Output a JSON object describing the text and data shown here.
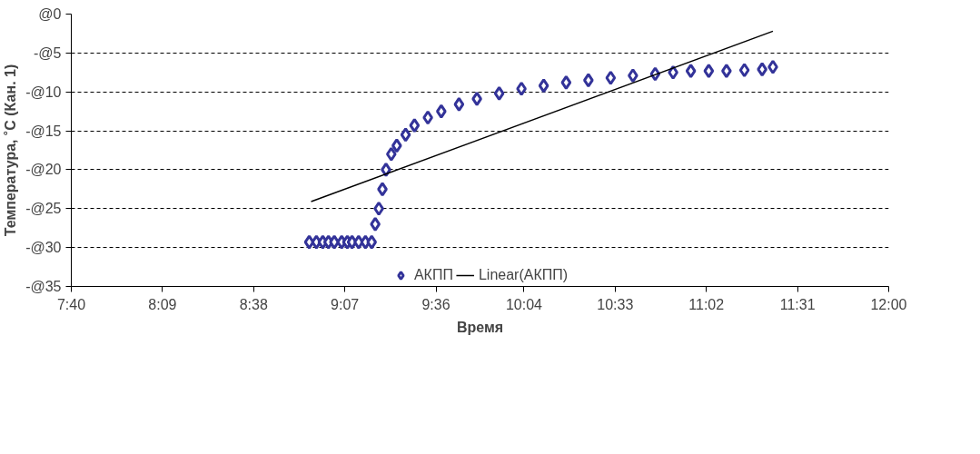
{
  "chart_data": {
    "type": "scatter",
    "xlabel": "Время",
    "ylabel": "Температура, ˚С (Кан. 1)",
    "xlim": [
      7.6667,
      12.0
    ],
    "xticks": [
      {
        "value": 7.6667,
        "label": "7:40"
      },
      {
        "value": 8.15,
        "label": "8:09"
      },
      {
        "value": 8.6333,
        "label": "8:38"
      },
      {
        "value": 9.1167,
        "label": "9:07"
      },
      {
        "value": 9.6,
        "label": "9:36"
      },
      {
        "value": 10.0667,
        "label": "10:04"
      },
      {
        "value": 10.55,
        "label": "10:33"
      },
      {
        "value": 11.0333,
        "label": "11:02"
      },
      {
        "value": 11.5167,
        "label": "11:31"
      },
      {
        "value": 12.0,
        "label": "12:00"
      }
    ],
    "ylim": [
      -35,
      0
    ],
    "yticks": [
      {
        "value": 0,
        "label": "@0"
      },
      {
        "value": -5,
        "label": "-@5"
      },
      {
        "value": -10,
        "label": "-@10"
      },
      {
        "value": -15,
        "label": "-@15"
      },
      {
        "value": -20,
        "label": "-@20"
      },
      {
        "value": -25,
        "label": "-@25"
      },
      {
        "value": -30,
        "label": "-@30"
      },
      {
        "value": -35,
        "label": "-@35"
      }
    ],
    "grid": "y",
    "legend": "bottom",
    "marker": "diamond",
    "series": [
      {
        "name": "АКПП",
        "color": "#333399",
        "x": [
          8.928,
          8.966,
          9.0,
          9.03,
          9.061,
          9.1,
          9.13,
          9.155,
          9.19,
          9.226,
          9.259,
          9.278,
          9.297,
          9.316,
          9.335,
          9.363,
          9.392,
          9.439,
          9.486,
          9.557,
          9.628,
          9.722,
          9.817,
          9.935,
          10.053,
          10.171,
          10.29,
          10.408,
          10.526,
          10.644,
          10.762,
          10.857,
          10.951,
          11.046,
          11.14,
          11.235,
          11.329,
          11.386
        ],
        "values": [
          -29.3,
          -29.3,
          -29.3,
          -29.3,
          -29.3,
          -29.3,
          -29.3,
          -29.3,
          -29.3,
          -29.3,
          -29.3,
          -27,
          -25,
          -22.5,
          -20,
          -18,
          -16.9,
          -15.5,
          -14.3,
          -13.3,
          -12.5,
          -11.6,
          -10.9,
          -10.2,
          -9.6,
          -9.2,
          -8.8,
          -8.5,
          -8.2,
          -7.9,
          -7.7,
          -7.5,
          -7.3,
          -7.3,
          -7.3,
          -7.2,
          -7.1,
          -6.8
        ]
      },
      {
        "name": "Linear(АКПП)",
        "type": "line",
        "color": "#000000",
        "marker": "none",
        "x": [
          8.938,
          11.386
        ],
        "values": [
          -24.1,
          -2.2
        ]
      }
    ]
  }
}
